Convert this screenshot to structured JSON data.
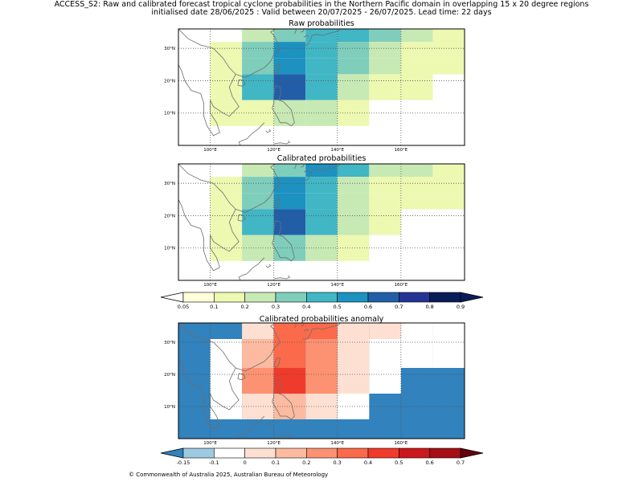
{
  "header": {
    "line1": "ACCESS_S2: Raw and calibrated forecast tropical cyclone probabilities in the Northern Pacific domain in overlapping 15 x 20 degree regions",
    "line2": "initialised date 28/06/2025 :  Valid between 20/07/2025 - 26/07/2025. Lead time: 22 days"
  },
  "footer": {
    "copyright": "© Commonwealth of Australia 2025, Australian Bureau of Meteorology"
  },
  "chart_data": [
    {
      "type": "heatmap",
      "title": "Raw probabilities",
      "x_ticks": [
        "100°E",
        "120°E",
        "140°E",
        "160°E"
      ],
      "y_ticks": [
        "10°N",
        "20°N",
        "30°N"
      ],
      "lon_range": [
        90,
        180
      ],
      "lat_range": [
        0,
        36
      ],
      "grid": "dotted",
      "cells": [
        {
          "lon": [
            110,
            120
          ],
          "lat": [
            32,
            36
          ],
          "value": 0.25
        },
        {
          "lon": [
            120,
            130
          ],
          "lat": [
            32,
            36
          ],
          "value": 0.35
        },
        {
          "lon": [
            130,
            140
          ],
          "lat": [
            32,
            36
          ],
          "value": 0.45
        },
        {
          "lon": [
            140,
            150
          ],
          "lat": [
            32,
            36
          ],
          "value": 0.45
        },
        {
          "lon": [
            150,
            160
          ],
          "lat": [
            32,
            36
          ],
          "value": 0.35
        },
        {
          "lon": [
            160,
            170
          ],
          "lat": [
            32,
            36
          ],
          "value": 0.25
        },
        {
          "lon": [
            170,
            180
          ],
          "lat": [
            32,
            36
          ],
          "value": 0.15
        },
        {
          "lon": [
            100,
            110
          ],
          "lat": [
            27,
            32
          ],
          "value": 0.1
        },
        {
          "lon": [
            110,
            120
          ],
          "lat": [
            27,
            32
          ],
          "value": 0.35
        },
        {
          "lon": [
            120,
            130
          ],
          "lat": [
            27,
            32
          ],
          "value": 0.55
        },
        {
          "lon": [
            130,
            140
          ],
          "lat": [
            27,
            32
          ],
          "value": 0.45
        },
        {
          "lon": [
            140,
            150
          ],
          "lat": [
            27,
            32
          ],
          "value": 0.35
        },
        {
          "lon": [
            150,
            160
          ],
          "lat": [
            27,
            32
          ],
          "value": 0.25
        },
        {
          "lon": [
            160,
            170
          ],
          "lat": [
            27,
            32
          ],
          "value": 0.15
        },
        {
          "lon": [
            170,
            180
          ],
          "lat": [
            27,
            32
          ],
          "value": 0.15
        },
        {
          "lon": [
            100,
            110
          ],
          "lat": [
            22,
            27
          ],
          "value": 0.1
        },
        {
          "lon": [
            110,
            120
          ],
          "lat": [
            22,
            27
          ],
          "value": 0.35
        },
        {
          "lon": [
            120,
            130
          ],
          "lat": [
            22,
            27
          ],
          "value": 0.55
        },
        {
          "lon": [
            130,
            140
          ],
          "lat": [
            22,
            27
          ],
          "value": 0.45
        },
        {
          "lon": [
            140,
            150
          ],
          "lat": [
            22,
            27
          ],
          "value": 0.35
        },
        {
          "lon": [
            150,
            160
          ],
          "lat": [
            22,
            27
          ],
          "value": 0.25
        },
        {
          "lon": [
            160,
            170
          ],
          "lat": [
            22,
            27
          ],
          "value": 0.15
        },
        {
          "lon": [
            170,
            180
          ],
          "lat": [
            22,
            27
          ],
          "value": 0.15
        },
        {
          "lon": [
            100,
            110
          ],
          "lat": [
            14,
            22
          ],
          "value": 0.15
        },
        {
          "lon": [
            110,
            120
          ],
          "lat": [
            14,
            22
          ],
          "value": 0.45
        },
        {
          "lon": [
            120,
            130
          ],
          "lat": [
            14,
            22
          ],
          "value": 0.65
        },
        {
          "lon": [
            130,
            140
          ],
          "lat": [
            14,
            22
          ],
          "value": 0.45
        },
        {
          "lon": [
            140,
            150
          ],
          "lat": [
            14,
            22
          ],
          "value": 0.25
        },
        {
          "lon": [
            150,
            160
          ],
          "lat": [
            14,
            22
          ],
          "value": 0.15
        },
        {
          "lon": [
            160,
            170
          ],
          "lat": [
            14,
            22
          ],
          "value": 0.1
        },
        {
          "lon": [
            100,
            110
          ],
          "lat": [
            6,
            14
          ],
          "value": 0.1
        },
        {
          "lon": [
            110,
            120
          ],
          "lat": [
            6,
            14
          ],
          "value": 0.15
        },
        {
          "lon": [
            120,
            130
          ],
          "lat": [
            6,
            14
          ],
          "value": 0.25
        },
        {
          "lon": [
            130,
            140
          ],
          "lat": [
            6,
            14
          ],
          "value": 0.25
        },
        {
          "lon": [
            140,
            150
          ],
          "lat": [
            6,
            14
          ],
          "value": 0.1
        }
      ]
    },
    {
      "type": "heatmap",
      "title": "Calibrated probabilities",
      "x_ticks": [
        "100°E",
        "120°E",
        "140°E",
        "160°E"
      ],
      "y_ticks": [
        "10°N",
        "20°N",
        "30°N"
      ],
      "lon_range": [
        90,
        180
      ],
      "lat_range": [
        0,
        36
      ],
      "grid": "dotted",
      "cells": [
        {
          "lon": [
            110,
            120
          ],
          "lat": [
            32,
            36
          ],
          "value": 0.25
        },
        {
          "lon": [
            120,
            130
          ],
          "lat": [
            32,
            36
          ],
          "value": 0.35
        },
        {
          "lon": [
            130,
            140
          ],
          "lat": [
            32,
            36
          ],
          "value": 0.55
        },
        {
          "lon": [
            140,
            150
          ],
          "lat": [
            32,
            36
          ],
          "value": 0.45
        },
        {
          "lon": [
            150,
            160
          ],
          "lat": [
            32,
            36
          ],
          "value": 0.25
        },
        {
          "lon": [
            160,
            170
          ],
          "lat": [
            32,
            36
          ],
          "value": 0.25
        },
        {
          "lon": [
            170,
            180
          ],
          "lat": [
            32,
            36
          ],
          "value": 0.15
        },
        {
          "lon": [
            160,
            170
          ],
          "lat": [
            27,
            32
          ],
          "value": 0.15
        },
        {
          "lon": [
            170,
            180
          ],
          "lat": [
            27,
            32
          ],
          "value": 0.1
        },
        {
          "lon": [
            100,
            110
          ],
          "lat": [
            27,
            32
          ],
          "value": 0.1
        },
        {
          "lon": [
            110,
            120
          ],
          "lat": [
            27,
            32
          ],
          "value": 0.35
        },
        {
          "lon": [
            120,
            130
          ],
          "lat": [
            27,
            32
          ],
          "value": 0.55
        },
        {
          "lon": [
            130,
            140
          ],
          "lat": [
            27,
            32
          ],
          "value": 0.45
        },
        {
          "lon": [
            140,
            150
          ],
          "lat": [
            27,
            32
          ],
          "value": 0.25
        },
        {
          "lon": [
            150,
            160
          ],
          "lat": [
            27,
            32
          ],
          "value": 0.15
        },
        {
          "lon": [
            100,
            110
          ],
          "lat": [
            22,
            27
          ],
          "value": 0.1
        },
        {
          "lon": [
            110,
            120
          ],
          "lat": [
            22,
            27
          ],
          "value": 0.35
        },
        {
          "lon": [
            120,
            130
          ],
          "lat": [
            22,
            27
          ],
          "value": 0.55
        },
        {
          "lon": [
            130,
            140
          ],
          "lat": [
            22,
            27
          ],
          "value": 0.45
        },
        {
          "lon": [
            140,
            150
          ],
          "lat": [
            22,
            27
          ],
          "value": 0.25
        },
        {
          "lon": [
            150,
            160
          ],
          "lat": [
            22,
            27
          ],
          "value": 0.15
        },
        {
          "lon": [
            160,
            170
          ],
          "lat": [
            22,
            27
          ],
          "value": 0.15
        },
        {
          "lon": [
            170,
            180
          ],
          "lat": [
            22,
            27
          ],
          "value": 0.1
        },
        {
          "lon": [
            100,
            110
          ],
          "lat": [
            14,
            22
          ],
          "value": 0.15
        },
        {
          "lon": [
            110,
            120
          ],
          "lat": [
            14,
            22
          ],
          "value": 0.45
        },
        {
          "lon": [
            120,
            130
          ],
          "lat": [
            14,
            22
          ],
          "value": 0.65
        },
        {
          "lon": [
            130,
            140
          ],
          "lat": [
            14,
            22
          ],
          "value": 0.45
        },
        {
          "lon": [
            140,
            150
          ],
          "lat": [
            14,
            22
          ],
          "value": 0.25
        },
        {
          "lon": [
            150,
            160
          ],
          "lat": [
            14,
            22
          ],
          "value": 0.1
        },
        {
          "lon": [
            100,
            110
          ],
          "lat": [
            6,
            14
          ],
          "value": 0.1
        },
        {
          "lon": [
            110,
            120
          ],
          "lat": [
            6,
            14
          ],
          "value": 0.25
        },
        {
          "lon": [
            120,
            130
          ],
          "lat": [
            6,
            14
          ],
          "value": 0.35
        },
        {
          "lon": [
            130,
            140
          ],
          "lat": [
            6,
            14
          ],
          "value": 0.25
        },
        {
          "lon": [
            140,
            150
          ],
          "lat": [
            6,
            14
          ],
          "value": 0.1
        }
      ]
    },
    {
      "type": "heatmap",
      "title": "Calibrated probabilities anomaly",
      "x_ticks": [
        "100°E",
        "120°E",
        "140°E",
        "160°E"
      ],
      "y_ticks": [
        "10°N",
        "20°N",
        "30°N"
      ],
      "lon_range": [
        90,
        180
      ],
      "lat_range": [
        0,
        36
      ],
      "grid": "dotted",
      "background_value": -0.2,
      "cells": [
        {
          "lon": [
            110,
            120
          ],
          "lat": [
            31,
            36
          ],
          "value": 0.05
        },
        {
          "lon": [
            120,
            130
          ],
          "lat": [
            31,
            36
          ],
          "value": 0.35
        },
        {
          "lon": [
            130,
            140
          ],
          "lat": [
            31,
            36
          ],
          "value": 0.35
        },
        {
          "lon": [
            140,
            150
          ],
          "lat": [
            31,
            36
          ],
          "value": 0.05
        },
        {
          "lon": [
            150,
            160
          ],
          "lat": [
            31,
            36
          ],
          "value": 0.05
        },
        {
          "lon": [
            160,
            170
          ],
          "lat": [
            31,
            36
          ],
          "value": -0.05
        },
        {
          "lon": [
            170,
            180
          ],
          "lat": [
            31,
            36
          ],
          "value": -0.1
        },
        {
          "lon": [
            100,
            110
          ],
          "lat": [
            22,
            31
          ],
          "value": -0.1
        },
        {
          "lon": [
            110,
            120
          ],
          "lat": [
            22,
            31
          ],
          "value": 0.15
        },
        {
          "lon": [
            120,
            130
          ],
          "lat": [
            22,
            31
          ],
          "value": 0.35
        },
        {
          "lon": [
            130,
            140
          ],
          "lat": [
            22,
            31
          ],
          "value": 0.25
        },
        {
          "lon": [
            140,
            150
          ],
          "lat": [
            22,
            31
          ],
          "value": 0.05
        },
        {
          "lon": [
            150,
            160
          ],
          "lat": [
            22,
            31
          ],
          "value": -0.05
        },
        {
          "lon": [
            160,
            170
          ],
          "lat": [
            22,
            31
          ],
          "value": -0.05
        },
        {
          "lon": [
            170,
            180
          ],
          "lat": [
            22,
            31
          ],
          "value": -0.1
        },
        {
          "lon": [
            100,
            110
          ],
          "lat": [
            14,
            22
          ],
          "value": -0.05
        },
        {
          "lon": [
            110,
            120
          ],
          "lat": [
            14,
            22
          ],
          "value": 0.25
        },
        {
          "lon": [
            120,
            130
          ],
          "lat": [
            14,
            22
          ],
          "value": 0.45
        },
        {
          "lon": [
            130,
            140
          ],
          "lat": [
            14,
            22
          ],
          "value": 0.25
        },
        {
          "lon": [
            140,
            150
          ],
          "lat": [
            14,
            22
          ],
          "value": 0.05
        },
        {
          "lon": [
            150,
            160
          ],
          "lat": [
            14,
            22
          ],
          "value": -0.1
        },
        {
          "lon": [
            100,
            110
          ],
          "lat": [
            6,
            14
          ],
          "value": -0.1
        },
        {
          "lon": [
            110,
            120
          ],
          "lat": [
            6,
            14
          ],
          "value": 0.05
        },
        {
          "lon": [
            120,
            130
          ],
          "lat": [
            6,
            14
          ],
          "value": 0.15
        },
        {
          "lon": [
            130,
            140
          ],
          "lat": [
            6,
            14
          ],
          "value": 0.05
        },
        {
          "lon": [
            140,
            150
          ],
          "lat": [
            6,
            14
          ],
          "value": -0.1
        }
      ]
    }
  ],
  "colorbars": [
    {
      "labels": [
        "0.05",
        "0.1",
        "0.2",
        "0.3",
        "0.4",
        "0.5",
        "0.6",
        "0.7",
        "0.8",
        "0.9"
      ],
      "colors": [
        "#ffffd9",
        "#edf8b1",
        "#c7e9b4",
        "#7fcdbb",
        "#41b6c4",
        "#1d91c0",
        "#225ea8",
        "#253494",
        "#081d58"
      ],
      "under_color": "#ffffff",
      "over_color": "#081d58"
    },
    {
      "labels": [
        "-0.15",
        "-0.1",
        "0",
        "0.1",
        "0.2",
        "0.3",
        "0.4",
        "0.5",
        "0.6",
        "0.7"
      ],
      "colors": [
        "#9ecae1",
        "#ffffff",
        "#fee0d2",
        "#fcbba1",
        "#fc9272",
        "#fb6a4a",
        "#ef3b2c",
        "#cb181d",
        "#a50f15"
      ],
      "under_color": "#3182bd",
      "over_color": "#67000d"
    }
  ]
}
